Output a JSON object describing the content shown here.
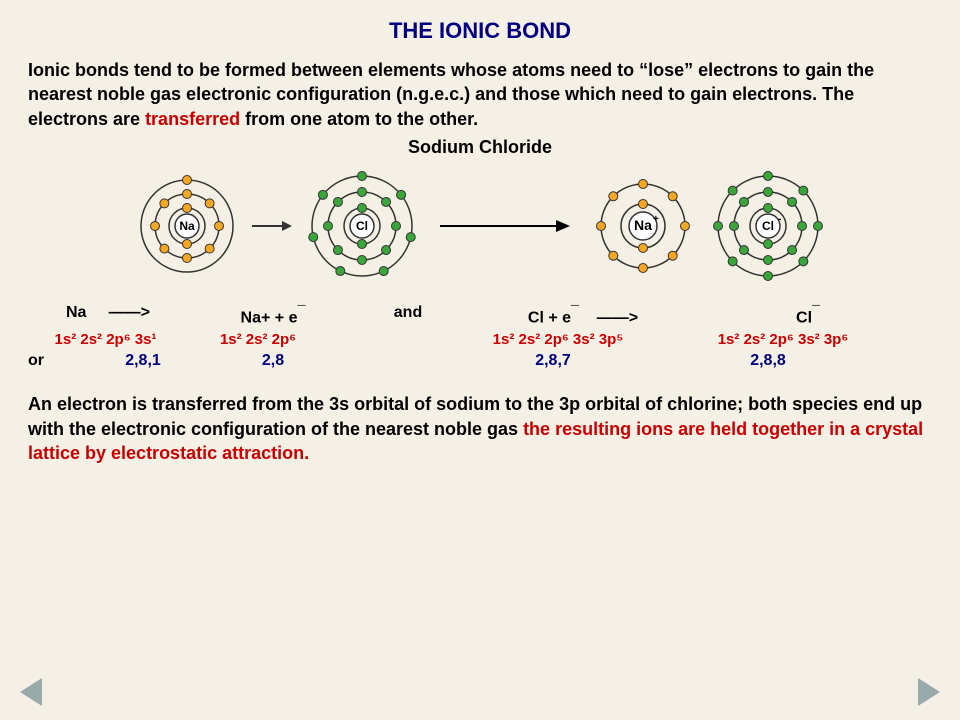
{
  "title": "THE IONIC BOND",
  "intro_before_red": "Ionic bonds tend to be formed between elements whose atoms need to “lose” electrons to gain the nearest noble gas electronic configuration (n.g.e.c.) and those which need to gain electrons.  The electrons are ",
  "intro_red": "transferred",
  "intro_after_red": " from one atom to the other.",
  "subheading": "Sodium Chloride",
  "atoms": {
    "na": {
      "label": "Na",
      "shells": [
        2,
        8,
        1
      ],
      "color": "#f5a623",
      "radii": [
        18,
        32,
        46
      ]
    },
    "cl": {
      "label": "Cl",
      "shells": [
        2,
        8,
        7
      ],
      "color": "#3aa63a",
      "radii": [
        18,
        34,
        50
      ]
    },
    "na_ion": {
      "label": "Na",
      "charge": "+",
      "shells": [
        2,
        8
      ],
      "color": "#f5a623",
      "radii": [
        22,
        42
      ]
    },
    "cl_ion": {
      "label": "Cl",
      "charge": "-",
      "shells": [
        2,
        8,
        8
      ],
      "color": "#3aa63a",
      "radii": [
        18,
        34,
        50
      ]
    }
  },
  "eq_na": "Na",
  "eq_arrow": "——>",
  "eq_na_plus": "Na+  +  e",
  "eq_and": "and",
  "eq_cl_plus_e": "Cl    +   e",
  "eq_cl_ion": "Cl",
  "config_na": "1s² 2s² 2p⁶ 3s¹",
  "config_na_ion": "1s² 2s² 2p⁶",
  "config_cl": "1s² 2s² 2p⁶ 3s² 3p⁵",
  "config_cl_ion": "1s² 2s² 2p⁶ 3s² 3p⁶",
  "or_label": "or",
  "shell_na": "2,8,1",
  "shell_na_ion": "2,8",
  "shell_cl": "2,8,7",
  "shell_cl_ion": "2,8,8",
  "conclusion_black": "An electron is transferred from the 3s orbital of sodium to the 3p orbital of chlorine; both species end up with the electronic configuration of the nearest noble gas ",
  "conclusion_red": "the resulting ions are held together in a crystal lattice by electrostatic attraction.",
  "colors": {
    "background": "#f5f0e6",
    "title": "#000080",
    "red": "#cc0000",
    "electron_orange": "#f5a623",
    "electron_green": "#3aa63a",
    "ring": "#333333",
    "nav_arrow": "#99aaaa"
  }
}
